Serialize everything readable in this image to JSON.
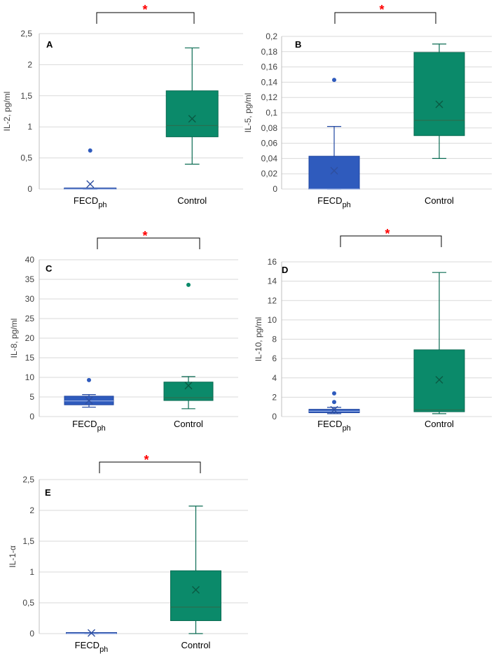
{
  "colors": {
    "fecd_fill": "#2f5bbd",
    "fecd_stroke": "#1f45a0",
    "fecd_point": "#2f5bbd",
    "control_fill": "#0b8a6a",
    "control_stroke": "#0a6b52",
    "control_point": "#0b8a6a",
    "grid": "#d9d9d9",
    "significance": "#ff0000"
  },
  "chart_data": [
    {
      "type": "boxplot",
      "panel_label": "A",
      "ylabel": "IL-2, pg/ml",
      "ylim": [
        0,
        2.5
      ],
      "ticks": [
        "0",
        "0,5",
        "1",
        "1,5",
        "2",
        "2,5"
      ],
      "tick_values": [
        0,
        0.5,
        1,
        1.5,
        2,
        2.5
      ],
      "significance": "*",
      "categories": [
        {
          "label_main": "FECD",
          "label_sub": "ph",
          "min": 0,
          "q1": 0,
          "median": 0,
          "q3": 0,
          "max": 0,
          "mean": 0.08,
          "outliers": [
            0.62
          ]
        },
        {
          "label_main": "Control",
          "label_sub": "",
          "min": 0.4,
          "q1": 0.84,
          "median": 1.02,
          "q3": 1.58,
          "max": 2.27,
          "mean": 1.13,
          "outliers": []
        }
      ]
    },
    {
      "type": "boxplot",
      "panel_label": "B",
      "ylabel": "IL-5, pg/ml",
      "ylim": [
        0,
        0.2
      ],
      "ticks": [
        "0",
        "0,02",
        "0,04",
        "0,06",
        "0,08",
        "0,1",
        "0,12",
        "0,14",
        "0,16",
        "0,18",
        "0,2"
      ],
      "tick_values": [
        0,
        0.02,
        0.04,
        0.06,
        0.08,
        0.1,
        0.12,
        0.14,
        0.16,
        0.18,
        0.2
      ],
      "significance": "*",
      "categories": [
        {
          "label_main": "FECD",
          "label_sub": "ph",
          "min": 0,
          "q1": 0,
          "median": 0,
          "q3": 0.043,
          "max": 0.082,
          "mean": 0.024,
          "outliers": [
            0.143
          ]
        },
        {
          "label_main": "Control",
          "label_sub": "",
          "min": 0.04,
          "q1": 0.07,
          "median": 0.09,
          "q3": 0.179,
          "max": 0.19,
          "mean": 0.111,
          "outliers": []
        }
      ]
    },
    {
      "type": "boxplot",
      "panel_label": "C",
      "ylabel": "IL-8, pg/ml",
      "ylim": [
        0,
        40
      ],
      "ticks": [
        "0",
        "5",
        "10",
        "15",
        "20",
        "25",
        "30",
        "35",
        "40"
      ],
      "tick_values": [
        0,
        5,
        10,
        15,
        20,
        25,
        30,
        35,
        40
      ],
      "significance": "*",
      "categories": [
        {
          "label_main": "FECD",
          "label_sub": "ph",
          "min": 2.4,
          "q1": 3.0,
          "median": 4.0,
          "q3": 5.2,
          "max": 5.6,
          "mean": 4.1,
          "outliers": [
            9.3
          ]
        },
        {
          "label_main": "Control",
          "label_sub": "",
          "min": 2.0,
          "q1": 4.1,
          "median": 4.8,
          "q3": 8.8,
          "max": 10.2,
          "mean": 7.9,
          "outliers": [
            33.6
          ]
        }
      ]
    },
    {
      "type": "boxplot",
      "panel_label": "D",
      "ylabel": "IL-10, pg/ml",
      "ylim": [
        0,
        16
      ],
      "ticks": [
        "0",
        "2",
        "4",
        "6",
        "8",
        "10",
        "12",
        "14",
        "16"
      ],
      "tick_values": [
        0,
        2,
        4,
        6,
        8,
        10,
        12,
        14,
        16
      ],
      "significance": "*",
      "categories": [
        {
          "label_main": "FECD",
          "label_sub": "ph",
          "min": 0.3,
          "q1": 0.4,
          "median": 0.55,
          "q3": 0.75,
          "max": 0.95,
          "mean": 0.7,
          "outliers": [
            1.5,
            2.4
          ]
        },
        {
          "label_main": "Control",
          "label_sub": "",
          "min": 0.3,
          "q1": 0.5,
          "median": 0.7,
          "q3": 6.9,
          "max": 14.9,
          "mean": 3.8,
          "outliers": []
        }
      ]
    },
    {
      "type": "boxplot",
      "panel_label": "E",
      "ylabel": "IL-1-α",
      "ylim": [
        0,
        2.5
      ],
      "ticks": [
        "0",
        "0,5",
        "1",
        "1,5",
        "2",
        "2,5"
      ],
      "tick_values": [
        0,
        0.5,
        1,
        1.5,
        2,
        2.5
      ],
      "significance": "*",
      "categories": [
        {
          "label_main": "FECD",
          "label_sub": "ph",
          "min": 0,
          "q1": 0,
          "median": 0,
          "q3": 0,
          "max": 0,
          "mean": 0.01,
          "outliers": []
        },
        {
          "label_main": "Control",
          "label_sub": "",
          "min": 0,
          "q1": 0.21,
          "median": 0.43,
          "q3": 1.02,
          "max": 2.07,
          "mean": 0.71,
          "outliers": []
        }
      ]
    }
  ]
}
